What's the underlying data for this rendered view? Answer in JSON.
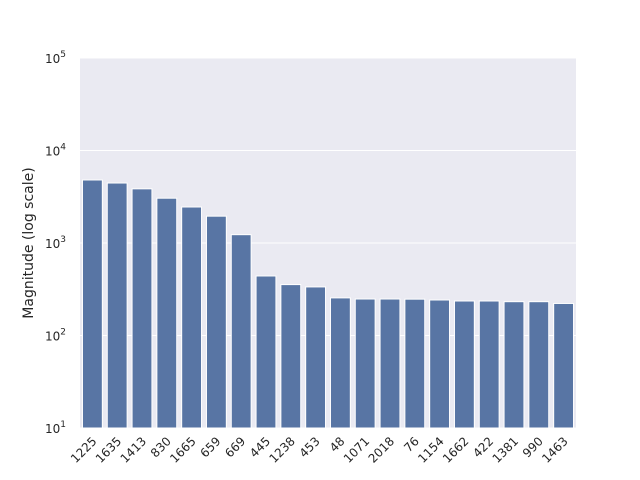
{
  "chart_data": {
    "type": "bar",
    "title": "",
    "xlabel": "",
    "ylabel": "Magnitude (log scale)",
    "yscale": "log",
    "ylim": [
      10,
      100000
    ],
    "y_ticks": [
      {
        "value": 10,
        "base": "10",
        "exp": "1"
      },
      {
        "value": 100,
        "base": "10",
        "exp": "2"
      },
      {
        "value": 1000,
        "base": "10",
        "exp": "3"
      },
      {
        "value": 10000,
        "base": "10",
        "exp": "4"
      },
      {
        "value": 100000,
        "base": "10",
        "exp": "5"
      }
    ],
    "grid": true,
    "bar_color": "#5875a4",
    "plot_background": "#eaeaf2",
    "categories": [
      "1225",
      "1635",
      "1413",
      "830",
      "1665",
      "659",
      "669",
      "445",
      "1238",
      "453",
      "48",
      "1071",
      "2018",
      "76",
      "1154",
      "1662",
      "422",
      "1381",
      "990",
      "1463"
    ],
    "values": [
      4800,
      4450,
      3850,
      3050,
      2450,
      1950,
      1230,
      440,
      355,
      335,
      255,
      248,
      248,
      247,
      242,
      236,
      236,
      232,
      232,
      222
    ]
  }
}
